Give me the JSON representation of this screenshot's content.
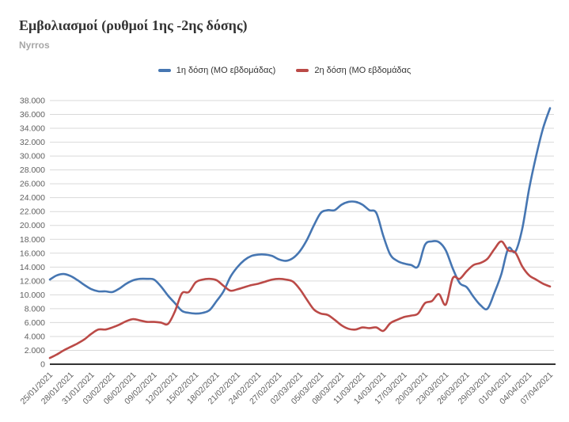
{
  "chart": {
    "title": "Εμβολιασμοί (ρυθμοί 1ης -2ης δόσης)",
    "subtitle": "Nyrros"
  },
  "chart_data": {
    "type": "line",
    "title": "Εμβολιασμοί (ρυθμοί 1ης -2ης δόσης)",
    "subtitle": "Nyrros",
    "grid": true,
    "legend_position": "top-center",
    "ylim": [
      0,
      38000
    ],
    "ytick_step": 2000,
    "x_tick_every": 3,
    "x": [
      "25/01/2021",
      "26/01/2021",
      "27/01/2021",
      "28/01/2021",
      "29/01/2021",
      "30/01/2021",
      "31/01/2021",
      "01/02/2021",
      "02/02/2021",
      "03/02/2021",
      "04/02/2021",
      "05/02/2021",
      "06/02/2021",
      "07/02/2021",
      "08/02/2021",
      "09/02/2021",
      "10/02/2021",
      "11/02/2021",
      "12/02/2021",
      "13/02/2021",
      "14/02/2021",
      "15/02/2021",
      "16/02/2021",
      "17/02/2021",
      "18/02/2021",
      "19/02/2021",
      "20/02/2021",
      "21/02/2021",
      "22/02/2021",
      "23/02/2021",
      "24/02/2021",
      "25/02/2021",
      "26/02/2021",
      "27/02/2021",
      "28/02/2021",
      "01/03/2021",
      "02/03/2021",
      "03/03/2021",
      "04/03/2021",
      "05/03/2021",
      "06/03/2021",
      "07/03/2021",
      "08/03/2021",
      "09/03/2021",
      "10/03/2021",
      "11/03/2021",
      "12/03/2021",
      "13/03/2021",
      "14/03/2021",
      "15/03/2021",
      "16/03/2021",
      "17/03/2021",
      "18/03/2021",
      "19/03/2021",
      "20/03/2021",
      "21/03/2021",
      "22/03/2021",
      "23/03/2021",
      "24/03/2021",
      "25/03/2021",
      "26/03/2021",
      "27/03/2021",
      "28/03/2021",
      "29/03/2021",
      "30/03/2021",
      "31/03/2021",
      "01/04/2021",
      "02/04/2021",
      "03/04/2021",
      "04/04/2021",
      "05/04/2021",
      "06/04/2021",
      "07/04/2021"
    ],
    "series": [
      {
        "name": "1η δόση (ΜΟ εβδομάδας)",
        "color": "#4676b2",
        "values": [
          12200,
          12800,
          13000,
          12700,
          12100,
          11400,
          10800,
          10500,
          10500,
          10400,
          10900,
          11600,
          12100,
          12300,
          12300,
          12200,
          11200,
          9900,
          8800,
          7700,
          7400,
          7300,
          7400,
          7800,
          9100,
          10500,
          12600,
          14000,
          15000,
          15600,
          15800,
          15800,
          15600,
          15100,
          14900,
          15300,
          16300,
          17900,
          20000,
          21800,
          22200,
          22200,
          23000,
          23400,
          23400,
          23000,
          22200,
          21800,
          18500,
          15800,
          14900,
          14500,
          14300,
          14100,
          17200,
          17700,
          17600,
          16400,
          13800,
          11700,
          11100,
          9700,
          8500,
          8000,
          10300,
          13000,
          16700,
          16200,
          19500,
          25300,
          30000,
          34000,
          36900
        ]
      },
      {
        "name": "2η δόση (ΜΟ εβδομάδας",
        "color": "#bb4a47",
        "values": [
          900,
          1400,
          2000,
          2500,
          3000,
          3600,
          4400,
          5000,
          5000,
          5300,
          5700,
          6200,
          6500,
          6300,
          6100,
          6100,
          6000,
          5800,
          7600,
          10200,
          10400,
          11800,
          12200,
          12300,
          12100,
          11300,
          10600,
          10800,
          11100,
          11400,
          11600,
          11900,
          12200,
          12300,
          12200,
          11900,
          10800,
          9300,
          7900,
          7300,
          7100,
          6400,
          5600,
          5100,
          5000,
          5300,
          5200,
          5300,
          4800,
          5900,
          6400,
          6800,
          7000,
          7300,
          8800,
          9100,
          10100,
          8600,
          12400,
          12300,
          13400,
          14300,
          14600,
          15200,
          16600,
          17700,
          16400,
          16100,
          14100,
          12800,
          12200,
          11600,
          11200
        ]
      }
    ]
  }
}
